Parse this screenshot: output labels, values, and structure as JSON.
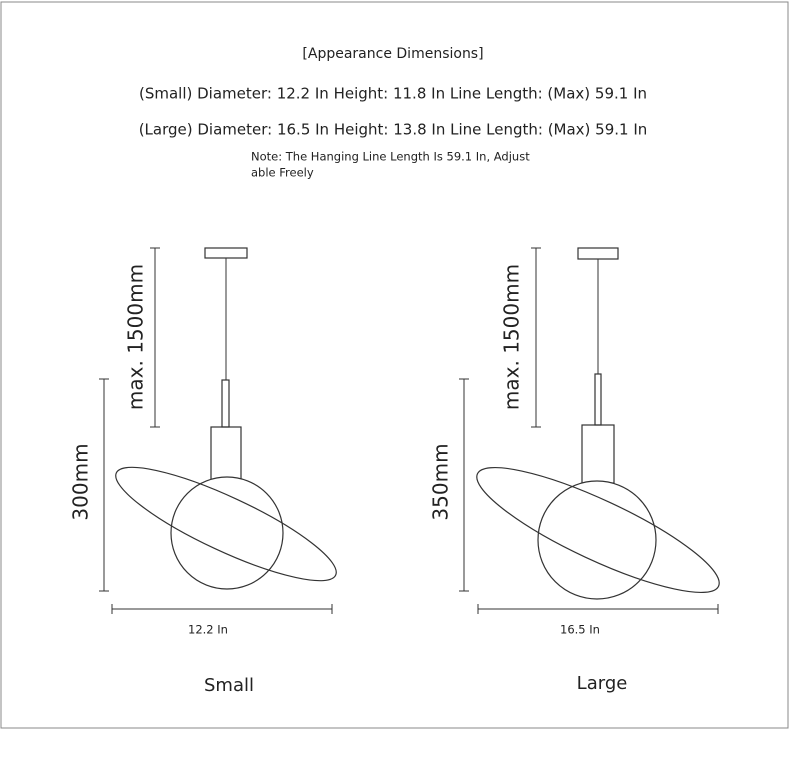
{
  "header": {
    "title": "[Appearance Dimensions]",
    "specs": [
      "(Small) Diameter: 12.2 In Height: 11.8 In Line Length: (Max) 59.1 In",
      "(Large) Diameter: 16.5 In Height: 13.8 In Line Length: (Max) 59.1 In"
    ],
    "note": [
      "Note: The Hanging Line Length Is 59.1 In, Adjust",
      "able Freely"
    ]
  },
  "lamps": [
    {
      "name": "Small",
      "line_length": "max. 1500mm",
      "height": "300mm",
      "diameter": "12.2 In"
    },
    {
      "name": "Large",
      "line_length": "max. 1500mm",
      "height": "350mm",
      "diameter": "16.5 In"
    }
  ]
}
